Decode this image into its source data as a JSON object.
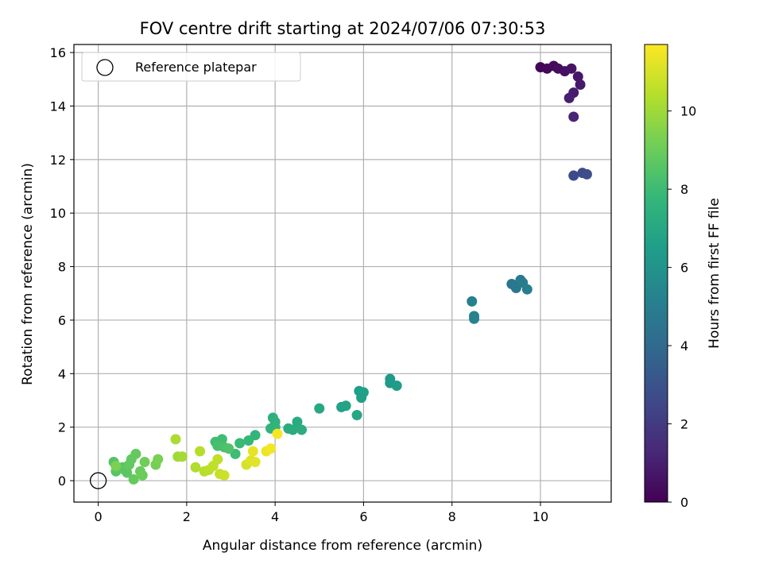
{
  "chart_data": {
    "type": "scatter",
    "title": "FOV centre drift starting at 2024/07/06 07:30:53",
    "xlabel": "Angular distance from reference (arcmin)",
    "ylabel": "Rotation from reference (arcmin)",
    "xlim": [
      -0.55,
      11.6
    ],
    "ylim": [
      -0.8,
      16.3
    ],
    "x_ticks": [
      0,
      2,
      4,
      6,
      8,
      10
    ],
    "y_ticks": [
      0,
      2,
      4,
      6,
      8,
      10,
      12,
      14,
      16
    ],
    "grid": true,
    "legend": {
      "placement": "upper-left",
      "entries": [
        {
          "label": "Reference platepar",
          "marker": "hollow-circle"
        }
      ]
    },
    "reference_point": {
      "x": 0,
      "y": 0
    },
    "colorbar": {
      "label": "Hours from first FF file",
      "colormap": "viridis",
      "range": [
        0,
        11.7
      ],
      "ticks": [
        0,
        2,
        4,
        6,
        8,
        10
      ]
    },
    "colors": {
      "viridis": [
        "#440154",
        "#482878",
        "#3e4a89",
        "#31688e",
        "#26828e",
        "#1f9e89",
        "#35b779",
        "#6ece58",
        "#b5de2b",
        "#fde725"
      ],
      "grid": "#b0b0b0"
    },
    "points": [
      {
        "x": 10.0,
        "y": 15.45,
        "h": 0.1
      },
      {
        "x": 10.15,
        "y": 15.4,
        "h": 0.2
      },
      {
        "x": 10.3,
        "y": 15.5,
        "h": 0.3
      },
      {
        "x": 10.4,
        "y": 15.4,
        "h": 0.4
      },
      {
        "x": 10.55,
        "y": 15.3,
        "h": 0.5
      },
      {
        "x": 10.7,
        "y": 15.4,
        "h": 0.6
      },
      {
        "x": 10.85,
        "y": 15.1,
        "h": 0.7
      },
      {
        "x": 10.9,
        "y": 14.8,
        "h": 0.8
      },
      {
        "x": 10.75,
        "y": 14.5,
        "h": 0.9
      },
      {
        "x": 10.65,
        "y": 14.3,
        "h": 1.0
      },
      {
        "x": 10.75,
        "y": 13.6,
        "h": 1.2
      },
      {
        "x": 10.75,
        "y": 11.4,
        "h": 2.6
      },
      {
        "x": 10.95,
        "y": 11.5,
        "h": 2.7
      },
      {
        "x": 11.05,
        "y": 11.45,
        "h": 2.8
      },
      {
        "x": 9.35,
        "y": 7.35,
        "h": 4.6
      },
      {
        "x": 9.45,
        "y": 7.2,
        "h": 4.7
      },
      {
        "x": 9.55,
        "y": 7.5,
        "h": 4.8
      },
      {
        "x": 9.6,
        "y": 7.4,
        "h": 4.9
      },
      {
        "x": 9.7,
        "y": 7.15,
        "h": 5.0
      },
      {
        "x": 8.45,
        "y": 6.7,
        "h": 5.1
      },
      {
        "x": 8.5,
        "y": 6.15,
        "h": 5.2
      },
      {
        "x": 8.5,
        "y": 6.05,
        "h": 5.25
      },
      {
        "x": 6.6,
        "y": 3.8,
        "h": 6.2
      },
      {
        "x": 6.6,
        "y": 3.65,
        "h": 6.3
      },
      {
        "x": 6.75,
        "y": 3.55,
        "h": 6.4
      },
      {
        "x": 5.9,
        "y": 3.35,
        "h": 6.5
      },
      {
        "x": 6.0,
        "y": 3.3,
        "h": 6.6
      },
      {
        "x": 5.95,
        "y": 3.1,
        "h": 6.6
      },
      {
        "x": 5.5,
        "y": 2.75,
        "h": 6.7
      },
      {
        "x": 5.6,
        "y": 2.8,
        "h": 6.8
      },
      {
        "x": 5.85,
        "y": 2.45,
        "h": 6.9
      },
      {
        "x": 5.0,
        "y": 2.7,
        "h": 7.0
      },
      {
        "x": 4.5,
        "y": 2.2,
        "h": 7.1
      },
      {
        "x": 4.3,
        "y": 1.95,
        "h": 7.2
      },
      {
        "x": 4.4,
        "y": 1.9,
        "h": 7.2
      },
      {
        "x": 4.6,
        "y": 1.9,
        "h": 7.3
      },
      {
        "x": 3.95,
        "y": 2.35,
        "h": 7.4
      },
      {
        "x": 4.0,
        "y": 2.2,
        "h": 7.5
      },
      {
        "x": 3.9,
        "y": 1.95,
        "h": 7.6
      },
      {
        "x": 4.0,
        "y": 2.0,
        "h": 7.6
      },
      {
        "x": 3.55,
        "y": 1.7,
        "h": 7.7
      },
      {
        "x": 3.4,
        "y": 1.5,
        "h": 7.8
      },
      {
        "x": 3.2,
        "y": 1.4,
        "h": 7.9
      },
      {
        "x": 3.1,
        "y": 1.0,
        "h": 8.0
      },
      {
        "x": 2.65,
        "y": 1.45,
        "h": 8.1
      },
      {
        "x": 2.8,
        "y": 1.55,
        "h": 8.1
      },
      {
        "x": 2.7,
        "y": 1.3,
        "h": 8.2
      },
      {
        "x": 2.85,
        "y": 1.25,
        "h": 8.3
      },
      {
        "x": 2.95,
        "y": 1.2,
        "h": 8.4
      },
      {
        "x": 0.35,
        "y": 0.7,
        "h": 8.5
      },
      {
        "x": 0.4,
        "y": 0.35,
        "h": 8.6
      },
      {
        "x": 0.55,
        "y": 0.5,
        "h": 8.6
      },
      {
        "x": 0.6,
        "y": 0.4,
        "h": 8.7
      },
      {
        "x": 0.65,
        "y": 0.3,
        "h": 8.7
      },
      {
        "x": 0.7,
        "y": 0.6,
        "h": 8.8
      },
      {
        "x": 0.75,
        "y": 0.8,
        "h": 8.8
      },
      {
        "x": 0.8,
        "y": 0.05,
        "h": 8.9
      },
      {
        "x": 0.85,
        "y": 1.0,
        "h": 8.9
      },
      {
        "x": 0.95,
        "y": 0.35,
        "h": 9.0
      },
      {
        "x": 1.0,
        "y": 0.2,
        "h": 9.0
      },
      {
        "x": 1.05,
        "y": 0.7,
        "h": 9.1
      },
      {
        "x": 1.3,
        "y": 0.6,
        "h": 9.2
      },
      {
        "x": 1.35,
        "y": 0.8,
        "h": 9.3
      },
      {
        "x": 0.4,
        "y": 0.55,
        "h": 9.3
      },
      {
        "x": 1.8,
        "y": 0.9,
        "h": 10.0
      },
      {
        "x": 1.9,
        "y": 0.9,
        "h": 10.1
      },
      {
        "x": 1.75,
        "y": 1.55,
        "h": 10.2
      },
      {
        "x": 2.2,
        "y": 0.5,
        "h": 10.3
      },
      {
        "x": 2.3,
        "y": 1.1,
        "h": 10.4
      },
      {
        "x": 2.4,
        "y": 0.35,
        "h": 10.4
      },
      {
        "x": 2.5,
        "y": 0.4,
        "h": 10.5
      },
      {
        "x": 2.6,
        "y": 0.55,
        "h": 10.6
      },
      {
        "x": 2.7,
        "y": 0.8,
        "h": 10.6
      },
      {
        "x": 2.75,
        "y": 0.25,
        "h": 10.7
      },
      {
        "x": 2.85,
        "y": 0.2,
        "h": 10.8
      },
      {
        "x": 3.35,
        "y": 0.6,
        "h": 11.0
      },
      {
        "x": 3.45,
        "y": 0.75,
        "h": 11.1
      },
      {
        "x": 3.55,
        "y": 0.7,
        "h": 11.2
      },
      {
        "x": 3.5,
        "y": 1.1,
        "h": 11.3
      },
      {
        "x": 3.8,
        "y": 1.1,
        "h": 11.4
      },
      {
        "x": 3.9,
        "y": 1.2,
        "h": 11.5
      },
      {
        "x": 4.05,
        "y": 1.75,
        "h": 11.6
      }
    ]
  }
}
